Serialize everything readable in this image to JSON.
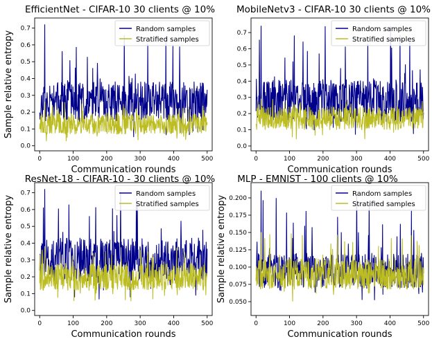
{
  "colors": {
    "random": "#00008b",
    "stratified": "#bcbd22"
  },
  "chart_data": [
    {
      "type": "line",
      "title": "EfficientNet - CIFAR-10 30 clients @ 10%",
      "xlabel": "Communication rounds",
      "ylabel": "Sample relative entropy",
      "xlim": [
        -15,
        515
      ],
      "ylim": [
        -0.03,
        0.76
      ],
      "xticks": [
        0,
        100,
        200,
        300,
        400,
        500
      ],
      "yticks": [
        0.0,
        0.1,
        0.2,
        0.3,
        0.4,
        0.5,
        0.6,
        0.7
      ],
      "legend": [
        "Random samples",
        "Stratified samples"
      ],
      "legend_loc": "upper right",
      "series": [
        {
          "name": "Random samples",
          "n": 500,
          "base": 0.26,
          "amp": 0.12,
          "spike": 0.72,
          "seed": 11
        },
        {
          "name": "Stratified samples",
          "n": 500,
          "base": 0.13,
          "amp": 0.06,
          "spike": 0.26,
          "seed": 23
        }
      ]
    },
    {
      "type": "line",
      "title": "MobileNetv3 - CIFAR-10 30 clients @ 10%",
      "xlabel": "Communication rounds",
      "ylabel": "",
      "xlim": [
        -15,
        515
      ],
      "ylim": [
        -0.03,
        0.79
      ],
      "xticks": [
        0,
        100,
        200,
        300,
        400,
        500
      ],
      "yticks": [
        0.0,
        0.1,
        0.2,
        0.3,
        0.4,
        0.5,
        0.6,
        0.7
      ],
      "legend": [
        "Random samples",
        "Stratified samples"
      ],
      "legend_loc": "upper right",
      "series": [
        {
          "name": "Random samples",
          "n": 500,
          "base": 0.28,
          "amp": 0.13,
          "spike": 0.74,
          "seed": 37
        },
        {
          "name": "Stratified samples",
          "n": 500,
          "base": 0.17,
          "amp": 0.07,
          "spike": 0.29,
          "seed": 41
        }
      ]
    },
    {
      "type": "line",
      "title": "ResNet-18 - CIFAR-10 - 30 clients @ 10%",
      "xlabel": "Communication rounds",
      "ylabel": "Sample relative entropy",
      "xlim": [
        -15,
        515
      ],
      "ylim": [
        -0.03,
        0.76
      ],
      "xticks": [
        0,
        100,
        200,
        300,
        400,
        500
      ],
      "yticks": [
        0.0,
        0.1,
        0.2,
        0.3,
        0.4,
        0.5,
        0.6,
        0.7
      ],
      "legend": [
        "Random samples",
        "Stratified samples"
      ],
      "legend_loc": "upper right",
      "series": [
        {
          "name": "Random samples",
          "n": 500,
          "base": 0.3,
          "amp": 0.13,
          "spike": 0.72,
          "seed": 53
        },
        {
          "name": "Stratified samples",
          "n": 500,
          "base": 0.2,
          "amp": 0.08,
          "spike": 0.38,
          "seed": 67
        }
      ]
    },
    {
      "type": "line",
      "title": "MLP - EMNIST - 100 clients @ 10%",
      "xlabel": "Communication rounds",
      "ylabel": "Sample relative entropy",
      "xlim": [
        -15,
        515
      ],
      "ylim": [
        0.03,
        0.222
      ],
      "xticks": [
        0,
        100,
        200,
        300,
        400,
        500
      ],
      "yticks": [
        0.05,
        0.075,
        0.1,
        0.125,
        0.15,
        0.175,
        0.2
      ],
      "ytick_labels": [
        "0.050",
        "0.075",
        "0.100",
        "0.125",
        "0.150",
        "0.175",
        "0.200"
      ],
      "legend": [
        "Random samples",
        "Stratified samples"
      ],
      "legend_loc": "upper right",
      "series": [
        {
          "name": "Random samples",
          "n": 500,
          "base": 0.095,
          "amp": 0.025,
          "spike": 0.21,
          "seed": 71
        },
        {
          "name": "Stratified samples",
          "n": 500,
          "base": 0.09,
          "amp": 0.022,
          "spike": 0.15,
          "seed": 83
        }
      ]
    }
  ]
}
